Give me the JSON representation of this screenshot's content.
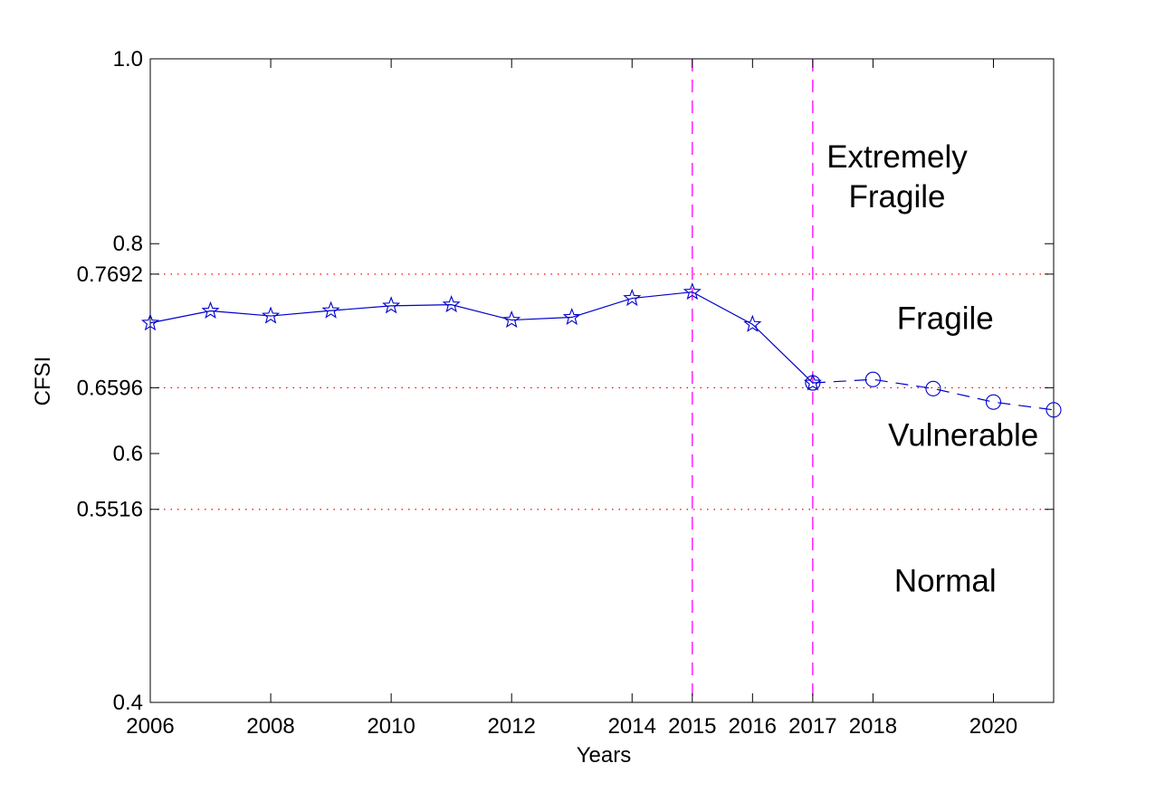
{
  "chart_data": {
    "type": "line",
    "xlabel": "Years",
    "ylabel": "CFSI",
    "xlim": [
      2006,
      2021
    ],
    "ylim": [
      0.4,
      1.0
    ],
    "y_scale": "sqrt",
    "grid": false,
    "x_ticks": [
      2006,
      2008,
      2010,
      2012,
      2014,
      2015,
      2016,
      2017,
      2018,
      2020
    ],
    "y_ticks": [
      {
        "value": 0.4,
        "label": "0.4"
      },
      {
        "value": 0.5516,
        "label": "0.5516"
      },
      {
        "value": 0.6,
        "label": "0.6"
      },
      {
        "value": 0.6596,
        "label": "0.6596"
      },
      {
        "value": 0.7692,
        "label": "0.7692"
      },
      {
        "value": 0.8,
        "label": "0.8"
      },
      {
        "value": 1.0,
        "label": "1.0"
      }
    ],
    "series": [
      {
        "marker": "star",
        "line_style": "solid",
        "color": "#0000cc",
        "x": [
          2006,
          2007,
          2008,
          2009,
          2010,
          2011,
          2012,
          2013,
          2014,
          2015,
          2016,
          2017
        ],
        "y": [
          0.7211,
          0.7328,
          0.7279,
          0.7331,
          0.7378,
          0.7389,
          0.7239,
          0.7266,
          0.7452,
          0.7514,
          0.7197,
          0.6641
        ]
      },
      {
        "marker": "circle",
        "line_style": "dashed",
        "color": "#0000cc",
        "x": [
          2017,
          2018,
          2019,
          2020,
          2021
        ],
        "y": [
          0.6641,
          0.6673,
          0.6588,
          0.6464,
          0.6392
        ]
      }
    ],
    "threshold_lines": [
      {
        "y": 0.7692,
        "style": "dotted",
        "color": "#ff0000"
      },
      {
        "y": 0.6596,
        "style": "dotted",
        "color": "#ff0000"
      },
      {
        "y": 0.5516,
        "style": "dotted",
        "color": "#ff0000"
      }
    ],
    "vertical_lines": [
      {
        "x": 2015,
        "style": "dashed",
        "color": "#ff00ff"
      },
      {
        "x": 2017,
        "style": "dashed",
        "color": "#ff00ff"
      }
    ],
    "annotations": [
      {
        "lines": [
          "Extremely",
          "Fragile"
        ],
        "x": 2018.4,
        "y": 0.88
      },
      {
        "lines": [
          "Fragile"
        ],
        "x": 2019.2,
        "y": 0.715
      },
      {
        "lines": [
          "Vulnerable"
        ],
        "x": 2019.5,
        "y": 0.607
      },
      {
        "lines": [
          "Normal"
        ],
        "x": 2019.2,
        "y": 0.484
      }
    ]
  }
}
